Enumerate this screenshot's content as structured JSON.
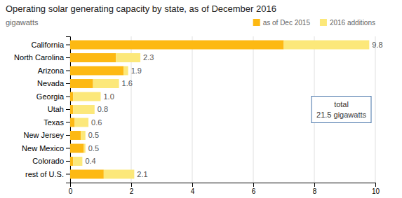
{
  "chart_data": {
    "type": "bar",
    "orientation": "horizontal",
    "stacked": true,
    "title": "Operating solar generating capacity by state, as of December 2016",
    "subtitle": "gigawatts",
    "categories": [
      "California",
      "North Carolina",
      "Arizona",
      "Nevada",
      "Georgia",
      "Utah",
      "Texas",
      "New Jersey",
      "New Mexico",
      "Colorado",
      "rest of U.S."
    ],
    "series": [
      {
        "name": "as of Dec 2015",
        "color": "#FDB913",
        "values": [
          7.0,
          1.5,
          1.75,
          0.75,
          0.1,
          0.1,
          0.15,
          0.35,
          0.45,
          0.1,
          1.1
        ]
      },
      {
        "name": "2016 additions",
        "color": "#FCE87A",
        "values": [
          2.8,
          0.8,
          0.15,
          0.85,
          0.9,
          0.7,
          0.45,
          0.15,
          0.05,
          0.3,
          1.0
        ]
      }
    ],
    "totals": [
      9.8,
      2.3,
      1.9,
      1.6,
      1.0,
      0.8,
      0.6,
      0.5,
      0.5,
      0.4,
      2.1
    ],
    "total_labels": [
      "9.8",
      "2.3",
      "1.9",
      "1.6",
      "1.0",
      "0.8",
      "0.6",
      "0.5",
      "0.5",
      "0.4",
      "2.1"
    ],
    "annotation": [
      "total",
      "21.5 gigawatts"
    ],
    "xlim": [
      0,
      10
    ],
    "xticks": [
      0,
      2,
      4,
      6,
      8,
      10
    ],
    "grid": true,
    "legend": "top"
  }
}
